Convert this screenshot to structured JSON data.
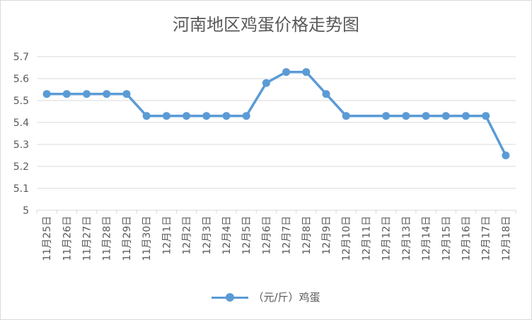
{
  "chart_data": {
    "type": "line",
    "title": "河南地区鸡蛋价格走势图",
    "categories": [
      "11月25日",
      "11月26日",
      "11月27日",
      "11月28日",
      "11月29日",
      "11月30日",
      "12月1日",
      "12月2日",
      "12月3日",
      "12月4日",
      "12月5日",
      "12月6日",
      "12月7日",
      "12月8日",
      "12月9日",
      "12月10日",
      "12月11日",
      "12月12日",
      "12月13日",
      "12月14日",
      "12月15日",
      "12月16日",
      "12月17日",
      "12月18日"
    ],
    "series": [
      {
        "name": "（元/斤）鸡蛋",
        "values": [
          5.53,
          5.53,
          5.53,
          5.53,
          5.53,
          5.43,
          5.43,
          5.43,
          5.43,
          5.43,
          5.43,
          5.58,
          5.63,
          5.63,
          5.53,
          5.43,
          null,
          5.43,
          5.43,
          5.43,
          5.43,
          5.43,
          5.43,
          5.25
        ]
      }
    ],
    "ylim": [
      5,
      5.7
    ],
    "yticks": [
      "5",
      "5.1",
      "5.2",
      "5.3",
      "5.4",
      "5.5",
      "5.6",
      "5.7"
    ],
    "grid": true,
    "legend_position": "bottom",
    "colors": {
      "series": "#5b9bd5",
      "grid": "#d9d9d9",
      "text": "#595959"
    }
  }
}
